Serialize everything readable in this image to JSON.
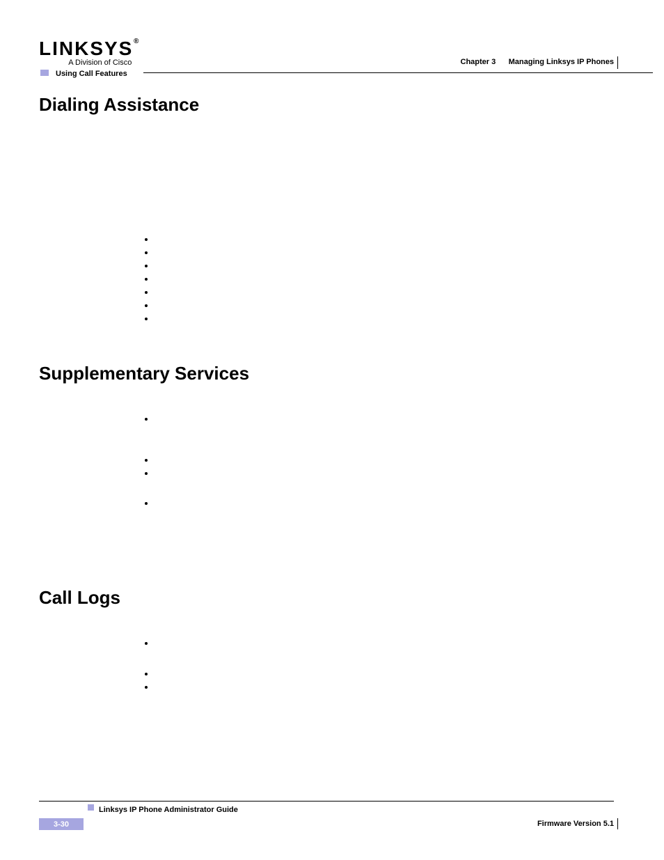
{
  "logo": {
    "brand": "LINKSYS",
    "register": "®",
    "subtitle": "A Division of Cisco"
  },
  "header": {
    "section_label": "Using Call Features",
    "chapter_num": "Chapter 3",
    "chapter_title": "Managing Linksys IP Phones"
  },
  "headings": {
    "h1": "Dialing Assistance",
    "h2": "Supplementary Services",
    "h3": "Call Logs"
  },
  "footer": {
    "guide_title": "Linksys IP Phone Administrator Guide",
    "page_number": "3-30",
    "firmware": "Firmware Version 5.1"
  },
  "colors": {
    "accent": "#a6a6e0",
    "text": "#000000",
    "background": "#ffffff",
    "page_num_text": "#ffffff"
  },
  "bullet_lists": {
    "list1_count": 7,
    "list2_count": 4,
    "list3_count": 3
  }
}
